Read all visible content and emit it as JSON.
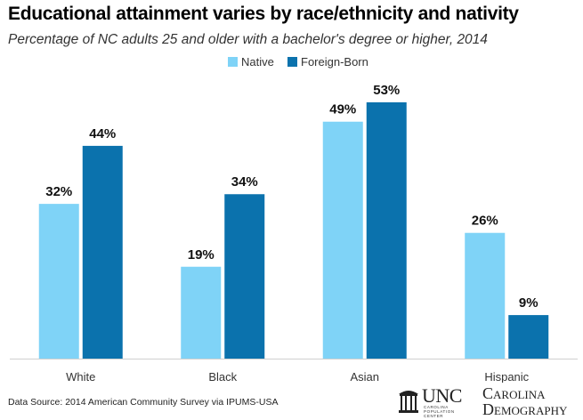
{
  "title": "Educational attainment varies by race/ethnicity and nativity",
  "subtitle": "Percentage of NC adults 25 and older with a bachelor's degree or higher, 2014",
  "source": "Data Source:  2014 American Community Survey via IPUMS-USA",
  "logo": {
    "unc": "UNC",
    "small_lines": [
      "CAROLINA",
      "POPULATION",
      "CENTER"
    ],
    "org_line1": "Carolina",
    "org_line2": "Demography"
  },
  "colors": {
    "native": "#7fd3f7",
    "foreign_born": "#0b72ad"
  },
  "chart_data": {
    "type": "bar",
    "title": "Educational attainment varies by race/ethnicity and nativity",
    "subtitle": "Percentage of NC adults 25 and older with a bachelor's degree or higher, 2014",
    "xlabel": "",
    "ylabel": "",
    "categories": [
      "White",
      "Black",
      "Asian",
      "Hispanic"
    ],
    "series": [
      {
        "name": "Native",
        "values": [
          32,
          19,
          49,
          26
        ],
        "labels": [
          "32%",
          "19%",
          "49%",
          "26%"
        ]
      },
      {
        "name": "Foreign-Born",
        "values": [
          44,
          34,
          53,
          9
        ],
        "labels": [
          "44%",
          "34%",
          "53%",
          "9%"
        ]
      }
    ],
    "ylim": [
      0,
      53
    ],
    "grid": false,
    "legend": "top-center"
  }
}
